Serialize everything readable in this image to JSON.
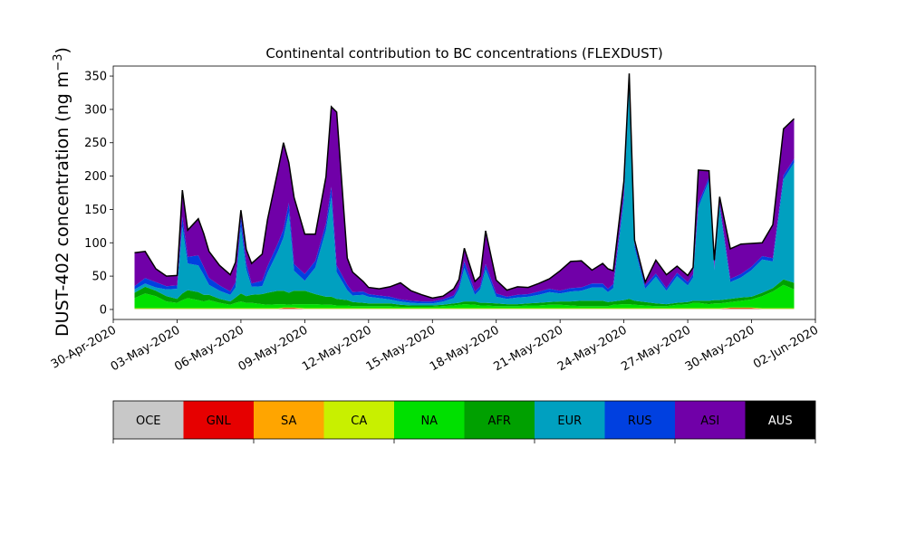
{
  "chart_data": {
    "type": "area",
    "stacked": true,
    "title": "Continental contribution to BC concentrations (FLEXDUST)",
    "ylabel": "DUST-402 concentration (ng m",
    "ylabel_sup": "−3",
    "ylabel_close": ")",
    "xlim": [
      "2020-04-30",
      "2020-06-02"
    ],
    "ylim": [
      -15,
      365
    ],
    "yticks": [
      0,
      50,
      100,
      150,
      200,
      250,
      300,
      350
    ],
    "xticks": [
      "30-Apr-2020",
      "03-May-2020",
      "06-May-2020",
      "09-May-2020",
      "12-May-2020",
      "15-May-2020",
      "18-May-2020",
      "21-May-2020",
      "24-May-2020",
      "27-May-2020",
      "30-May-2020",
      "02-Jun-2020"
    ],
    "x": [
      "2020-05-01",
      "2020-05-01T12:00",
      "2020-05-02",
      "2020-05-02T12:00",
      "2020-05-03",
      "2020-05-03T06:00",
      "2020-05-03T12:00",
      "2020-05-04",
      "2020-05-04T06:00",
      "2020-05-04T12:00",
      "2020-05-05",
      "2020-05-05T12:00",
      "2020-05-05T18:00",
      "2020-05-06",
      "2020-05-06T06:00",
      "2020-05-06T12:00",
      "2020-05-07",
      "2020-05-07T06:00",
      "2020-05-07T18:00",
      "2020-05-08",
      "2020-05-08T06:00",
      "2020-05-08T12:00",
      "2020-05-09",
      "2020-05-09T12:00",
      "2020-05-10",
      "2020-05-10T06:00",
      "2020-05-10T12:00",
      "2020-05-11",
      "2020-05-11T06:00",
      "2020-05-11T18:00",
      "2020-05-12",
      "2020-05-12T12:00",
      "2020-05-13",
      "2020-05-13T12:00",
      "2020-05-14",
      "2020-05-14T12:00",
      "2020-05-15",
      "2020-05-15T12:00",
      "2020-05-16",
      "2020-05-16T06:00",
      "2020-05-16T12:00",
      "2020-05-17",
      "2020-05-17T06:00",
      "2020-05-17T12:00",
      "2020-05-18",
      "2020-05-18T12:00",
      "2020-05-19",
      "2020-05-19T12:00",
      "2020-05-20",
      "2020-05-20T12:00",
      "2020-05-21",
      "2020-05-21T12:00",
      "2020-05-22",
      "2020-05-22T12:00",
      "2020-05-23",
      "2020-05-23T06:00",
      "2020-05-23T12:00",
      "2020-05-24",
      "2020-05-24T06:00",
      "2020-05-24T12:00",
      "2020-05-25",
      "2020-05-25T12:00",
      "2020-05-26",
      "2020-05-26T12:00",
      "2020-05-27",
      "2020-05-27T06:00",
      "2020-05-27T12:00",
      "2020-05-28",
      "2020-05-28T06:00",
      "2020-05-28T12:00",
      "2020-05-29",
      "2020-05-29T12:00",
      "2020-05-30",
      "2020-05-30T12:00",
      "2020-05-31",
      "2020-05-31T12:00",
      "2020-06-01"
    ],
    "series": [
      {
        "name": "OCE",
        "color": "#c8c8c8",
        "values": [
          1,
          1,
          1,
          1,
          1,
          1,
          1,
          1,
          1,
          1,
          1,
          1,
          1,
          1,
          1,
          1,
          1,
          1,
          1,
          1,
          1,
          1,
          1,
          1,
          1,
          1,
          1,
          1,
          1,
          1,
          1,
          1,
          1,
          1,
          1,
          1,
          1,
          1,
          1,
          1,
          1,
          1,
          1,
          1,
          1,
          1,
          1,
          1,
          1,
          1,
          1,
          1,
          1,
          1,
          1,
          1,
          1,
          1,
          1,
          1,
          1,
          1,
          1,
          1,
          1,
          1,
          1,
          1,
          1,
          1,
          1,
          1,
          1,
          1,
          1,
          1,
          1
        ]
      },
      {
        "name": "GNL",
        "color": "#e60000",
        "values": [
          0,
          0,
          0,
          0,
          0,
          0,
          0,
          0,
          0,
          0,
          0,
          0,
          0,
          0,
          0,
          0,
          0,
          0,
          0,
          1,
          1,
          1,
          0,
          0,
          0,
          0,
          0,
          0,
          0,
          0,
          0,
          0,
          0,
          0,
          0,
          0,
          0,
          0,
          0,
          0,
          0,
          0,
          0,
          0,
          0,
          0,
          0,
          0,
          0,
          0,
          0,
          0,
          0,
          0,
          0,
          0,
          0,
          0,
          0,
          0,
          0,
          0,
          0,
          0,
          0,
          0,
          0,
          0,
          0,
          0,
          1,
          1,
          1,
          0,
          0,
          0,
          0
        ]
      },
      {
        "name": "SA",
        "color": "#ffa500",
        "values": [
          0,
          0,
          0,
          0,
          0,
          0,
          0,
          0,
          0,
          0,
          0,
          0,
          0,
          0,
          0,
          0,
          0,
          0,
          0,
          0,
          0,
          0,
          0,
          0,
          0,
          0,
          0,
          0,
          0,
          0,
          0,
          0,
          0,
          0,
          0,
          0,
          0,
          0,
          0,
          0,
          0,
          0,
          0,
          0,
          0,
          0,
          0,
          0,
          0,
          0,
          0,
          0,
          0,
          0,
          0,
          0,
          0,
          0,
          0,
          0,
          0,
          0,
          0,
          0,
          0,
          0,
          0,
          0,
          0,
          0,
          0,
          0,
          0,
          0,
          0,
          0,
          0
        ]
      },
      {
        "name": "CA",
        "color": "#c8f000",
        "values": [
          1,
          1,
          1,
          1,
          1,
          1,
          1,
          1,
          1,
          1,
          1,
          1,
          1,
          1,
          1,
          1,
          1,
          1,
          1,
          1,
          1,
          1,
          1,
          1,
          1,
          1,
          1,
          1,
          1,
          1,
          1,
          1,
          1,
          1,
          1,
          1,
          1,
          1,
          1,
          1,
          1,
          1,
          1,
          1,
          1,
          1,
          1,
          1,
          1,
          1,
          1,
          1,
          1,
          1,
          1,
          1,
          1,
          1,
          1,
          1,
          1,
          1,
          1,
          1,
          1,
          1,
          1,
          1,
          1,
          1,
          1,
          1,
          1,
          1,
          1,
          1,
          1
        ]
      },
      {
        "name": "NA",
        "color": "#00e000",
        "values": [
          15,
          22,
          18,
          10,
          8,
          12,
          15,
          12,
          10,
          12,
          8,
          5,
          8,
          10,
          8,
          8,
          6,
          5,
          6,
          5,
          4,
          5,
          6,
          6,
          5,
          5,
          4,
          4,
          3,
          3,
          3,
          3,
          3,
          2,
          2,
          2,
          2,
          3,
          4,
          5,
          6,
          5,
          4,
          4,
          3,
          3,
          3,
          4,
          4,
          5,
          5,
          4,
          3,
          3,
          3,
          3,
          5,
          6,
          6,
          5,
          4,
          3,
          3,
          5,
          6,
          8,
          8,
          6,
          7,
          7,
          8,
          10,
          12,
          18,
          25,
          35,
          28
        ]
      },
      {
        "name": "AFR",
        "color": "#00a000",
        "values": [
          8,
          10,
          8,
          8,
          6,
          10,
          12,
          12,
          10,
          8,
          6,
          5,
          8,
          12,
          10,
          12,
          15,
          18,
          20,
          20,
          18,
          20,
          20,
          15,
          12,
          12,
          10,
          8,
          6,
          5,
          4,
          4,
          4,
          3,
          2,
          2,
          2,
          2,
          3,
          3,
          4,
          5,
          4,
          4,
          4,
          3,
          3,
          3,
          4,
          4,
          5,
          6,
          8,
          8,
          8,
          6,
          5,
          6,
          8,
          6,
          5,
          4,
          3,
          3,
          3,
          3,
          3,
          5,
          5,
          5,
          5,
          5,
          4,
          5,
          5,
          8,
          10
        ]
      },
      {
        "name": "EUR",
        "color": "#00a0c0",
        "values": [
          5,
          5,
          5,
          10,
          15,
          100,
          40,
          40,
          30,
          15,
          12,
          10,
          15,
          100,
          40,
          12,
          12,
          30,
          60,
          80,
          120,
          30,
          15,
          40,
          100,
          150,
          40,
          15,
          10,
          12,
          10,
          8,
          6,
          5,
          4,
          3,
          3,
          5,
          8,
          20,
          50,
          10,
          20,
          50,
          10,
          8,
          10,
          10,
          12,
          15,
          12,
          15,
          15,
          20,
          20,
          15,
          20,
          150,
          320,
          80,
          20,
          40,
          20,
          40,
          25,
          35,
          140,
          180,
          45,
          140,
          25,
          30,
          40,
          50,
          40,
          150,
          180
        ]
      },
      {
        "name": "RUS",
        "color": "#0040e0",
        "values": [
          5,
          8,
          8,
          5,
          5,
          15,
          10,
          15,
          12,
          10,
          8,
          5,
          8,
          15,
          10,
          5,
          8,
          10,
          12,
          12,
          15,
          10,
          10,
          10,
          10,
          15,
          10,
          8,
          5,
          5,
          4,
          4,
          4,
          3,
          3,
          3,
          3,
          3,
          4,
          5,
          10,
          5,
          5,
          8,
          5,
          3,
          4,
          4,
          5,
          5,
          4,
          5,
          5,
          6,
          6,
          5,
          6,
          8,
          8,
          6,
          5,
          5,
          4,
          5,
          5,
          5,
          6,
          5,
          5,
          5,
          5,
          5,
          5,
          5,
          5,
          6,
          6
        ]
      },
      {
        "name": "ASI",
        "color": "#7000a8",
        "values": [
          50,
          40,
          20,
          15,
          15,
          40,
          40,
          55,
          50,
          40,
          30,
          25,
          30,
          10,
          20,
          30,
          40,
          70,
          110,
          130,
          60,
          100,
          60,
          40,
          70,
          120,
          230,
          40,
          30,
          15,
          10,
          10,
          15,
          25,
          15,
          10,
          5,
          5,
          10,
          10,
          20,
          15,
          15,
          50,
          20,
          10,
          12,
          10,
          12,
          15,
          30,
          40,
          40,
          20,
          30,
          30,
          20,
          20,
          10,
          5,
          5,
          20,
          20,
          10,
          10,
          10,
          50,
          10,
          10,
          10,
          45,
          45,
          35,
          20,
          50,
          70,
          60
        ]
      },
      {
        "name": "AUS",
        "color": "#000000",
        "values": [
          0,
          0,
          0,
          0,
          0,
          0,
          0,
          0,
          0,
          0,
          0,
          0,
          0,
          0,
          0,
          0,
          0,
          0,
          0,
          0,
          0,
          0,
          0,
          0,
          0,
          0,
          0,
          0,
          0,
          0,
          0,
          0,
          0,
          0,
          0,
          0,
          0,
          0,
          0,
          0,
          0,
          0,
          0,
          0,
          0,
          0,
          0,
          0,
          0,
          0,
          0,
          0,
          0,
          0,
          0,
          0,
          0,
          0,
          0,
          0,
          0,
          0,
          0,
          0,
          0,
          0,
          0,
          0,
          0,
          0,
          0,
          0,
          0,
          0,
          0,
          0,
          0
        ]
      }
    ],
    "legend_placement": "below"
  }
}
